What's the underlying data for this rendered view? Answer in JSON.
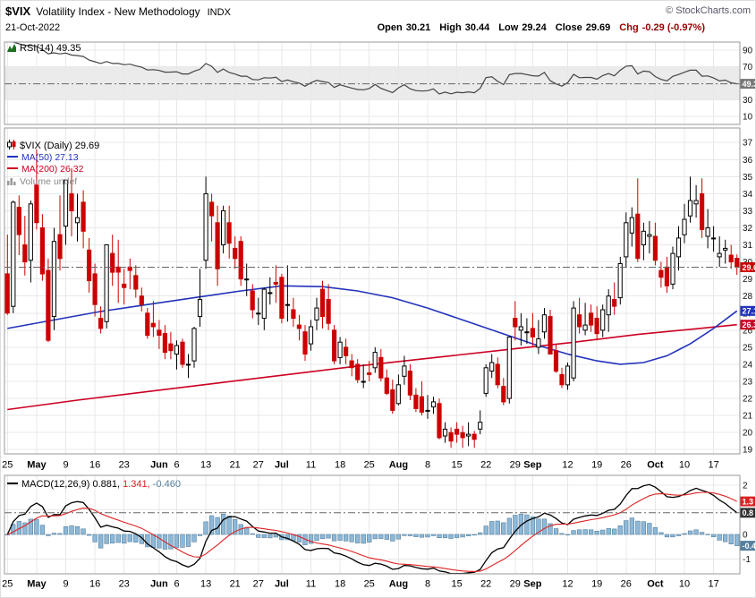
{
  "header": {
    "symbol": "$VIX",
    "name": "Volatility Index - New Methodology",
    "exchange": "INDX",
    "copyright": "© StockCharts.com",
    "date": "21-Oct-2022",
    "quote": {
      "open_l": "Open",
      "open": "30.21",
      "high_l": "High",
      "high": "30.44",
      "low_l": "Low",
      "low": "29.24",
      "close_l": "Close",
      "close": "29.69",
      "chg_l": "Chg",
      "chg": "-0.29 (-0.97%)"
    }
  },
  "legends": {
    "rsi": "RSI(14) 49.35",
    "price": "$VIX (Daily) 29.69",
    "ma50": "MA(50) 27.13",
    "ma200": "MA(200) 26.32",
    "volume": "Volume undef",
    "macd_label": "MACD(12,26,9) 0.881,",
    "macd_signal": "1.341,",
    "macd_hist": "-0.460"
  },
  "colors": {
    "candle_up": "#000000",
    "up_fill": "#ffffff",
    "candle_down": "#cc0000",
    "down_fill": "#cc0000",
    "ma50": "#2233bb",
    "ma200": "#cc0022",
    "grid": "#e8e8e8",
    "panel_border": "#999999",
    "rsi_line": "#444444",
    "rsi_band": "#ebebeb",
    "macd_line": "#000000",
    "signal_line": "#dd2222",
    "hist_fill": "#8db8d8",
    "hist_stroke": "#55809f",
    "badge_rsi": "#777777",
    "badge_macd": "#333333",
    "last_line": "#666666",
    "chg_text": "#990000",
    "copyright_text": "#555566",
    "volume_text": "#888888",
    "axis_text": "#111111"
  },
  "chart_data": {
    "type": "candlestick",
    "symbol": "$VIX",
    "timeframe": "Daily",
    "last_date": "21-Oct-2022",
    "x_ticks": [
      {
        "i": 0,
        "label": "25"
      },
      {
        "i": 5,
        "label": "May",
        "bold": true
      },
      {
        "i": 10,
        "label": "9"
      },
      {
        "i": 15,
        "label": "16"
      },
      {
        "i": 20,
        "label": "23"
      },
      {
        "i": 26,
        "label": "Jun",
        "bold": true
      },
      {
        "i": 29,
        "label": "6"
      },
      {
        "i": 34,
        "label": "13"
      },
      {
        "i": 39,
        "label": "21"
      },
      {
        "i": 43,
        "label": "27"
      },
      {
        "i": 47,
        "label": "Jul",
        "bold": true
      },
      {
        "i": 52,
        "label": "11"
      },
      {
        "i": 57,
        "label": "18"
      },
      {
        "i": 62,
        "label": "25"
      },
      {
        "i": 67,
        "label": "Aug",
        "bold": true
      },
      {
        "i": 72,
        "label": "8"
      },
      {
        "i": 77,
        "label": "15"
      },
      {
        "i": 82,
        "label": "22"
      },
      {
        "i": 87,
        "label": "29"
      },
      {
        "i": 90,
        "label": "Sep",
        "bold": true
      },
      {
        "i": 96,
        "label": "12"
      },
      {
        "i": 101,
        "label": "19"
      },
      {
        "i": 106,
        "label": "26"
      },
      {
        "i": 111,
        "label": "Oct",
        "bold": true
      },
      {
        "i": 116,
        "label": "10"
      },
      {
        "i": 121,
        "label": "17"
      }
    ],
    "price": {
      "ylim": [
        18.75,
        37.85
      ],
      "yticks": [
        37,
        36,
        35,
        34,
        33,
        32,
        31,
        30,
        29,
        28,
        27,
        26,
        25,
        24,
        23,
        22,
        21,
        20,
        19
      ],
      "last": 29.69,
      "ma50_last": 27.13,
      "ma200_last": 26.32,
      "candles": [
        [
          29.3,
          31.6,
          26.9,
          27.0
        ],
        [
          27.4,
          33.6,
          27.0,
          33.5
        ],
        [
          33.2,
          33.9,
          30.4,
          31.6
        ],
        [
          31.0,
          32.7,
          29.2,
          30.0
        ],
        [
          30.1,
          33.6,
          28.8,
          33.4
        ],
        [
          34.5,
          36.6,
          31.9,
          32.3
        ],
        [
          32.0,
          32.8,
          28.9,
          29.3
        ],
        [
          29.5,
          30.2,
          25.3,
          25.4
        ],
        [
          26.8,
          32.0,
          26.0,
          31.2
        ],
        [
          31.6,
          33.9,
          29.5,
          30.2
        ],
        [
          32.1,
          34.8,
          31.0,
          34.8
        ],
        [
          34.0,
          35.5,
          31.5,
          33.0
        ],
        [
          32.3,
          34.0,
          31.2,
          32.6
        ],
        [
          33.5,
          34.2,
          30.8,
          31.8
        ],
        [
          30.7,
          31.4,
          28.2,
          28.9
        ],
        [
          29.3,
          29.9,
          26.8,
          27.5
        ],
        [
          26.7,
          27.4,
          25.8,
          26.1
        ],
        [
          26.5,
          31.0,
          26.1,
          31.0
        ],
        [
          30.5,
          31.6,
          28.6,
          29.4
        ],
        [
          29.7,
          31.3,
          27.6,
          29.4
        ],
        [
          28.7,
          29.6,
          27.5,
          28.5
        ],
        [
          29.7,
          30.2,
          28.4,
          29.5
        ],
        [
          29.2,
          29.8,
          27.9,
          28.4
        ],
        [
          28.0,
          28.5,
          27.1,
          27.5
        ],
        [
          27.0,
          27.3,
          25.5,
          25.7
        ],
        [
          26.4,
          27.7,
          25.6,
          26.2
        ],
        [
          26.0,
          26.6,
          24.9,
          25.7
        ],
        [
          25.8,
          26.3,
          24.3,
          24.7
        ],
        [
          25.2,
          25.9,
          24.3,
          24.8
        ],
        [
          24.6,
          25.4,
          23.7,
          25.1
        ],
        [
          25.3,
          25.5,
          23.8,
          24.0
        ],
        [
          24.0,
          24.6,
          23.2,
          24.0
        ],
        [
          24.2,
          26.2,
          23.8,
          26.1
        ],
        [
          26.8,
          29.6,
          26.2,
          27.8
        ],
        [
          30.1,
          35.0,
          29.6,
          34.0
        ],
        [
          33.5,
          34.0,
          31.2,
          32.7
        ],
        [
          32.3,
          33.3,
          28.6,
          29.6
        ],
        [
          31.0,
          33.3,
          30.5,
          33.0
        ],
        [
          32.3,
          33.3,
          30.2,
          31.1
        ],
        [
          30.8,
          31.5,
          29.6,
          30.2
        ],
        [
          31.2,
          31.5,
          28.6,
          29.0
        ],
        [
          29.0,
          29.9,
          28.0,
          29.0
        ],
        [
          28.3,
          28.7,
          26.7,
          27.2
        ],
        [
          27.0,
          27.9,
          26.3,
          27.0
        ],
        [
          26.7,
          28.5,
          26.0,
          28.4
        ],
        [
          28.2,
          29.1,
          27.5,
          28.2
        ],
        [
          28.8,
          29.8,
          27.6,
          28.7
        ],
        [
          29.1,
          29.3,
          26.4,
          26.7
        ],
        [
          27.5,
          29.8,
          26.5,
          27.5
        ],
        [
          27.2,
          27.9,
          26.2,
          26.7
        ],
        [
          26.3,
          26.9,
          25.4,
          26.1
        ],
        [
          25.9,
          26.3,
          24.2,
          24.6
        ],
        [
          25.2,
          26.6,
          24.8,
          26.2
        ],
        [
          26.6,
          27.9,
          26.0,
          27.3
        ],
        [
          28.4,
          28.9,
          26.1,
          26.8
        ],
        [
          27.8,
          28.7,
          26.0,
          26.4
        ],
        [
          26.0,
          26.3,
          24.0,
          24.2
        ],
        [
          24.4,
          25.6,
          24.0,
          25.3
        ],
        [
          25.0,
          25.5,
          24.0,
          24.5
        ],
        [
          24.2,
          24.6,
          23.3,
          23.8
        ],
        [
          24.0,
          24.3,
          22.9,
          23.1
        ],
        [
          23.0,
          24.0,
          22.6,
          23.0
        ],
        [
          23.5,
          24.2,
          23.0,
          23.4
        ],
        [
          23.8,
          25.0,
          23.5,
          24.7
        ],
        [
          24.4,
          24.9,
          23.0,
          23.2
        ],
        [
          23.2,
          23.7,
          22.2,
          22.3
        ],
        [
          22.5,
          23.1,
          21.1,
          21.3
        ],
        [
          21.7,
          23.4,
          21.6,
          22.8
        ],
        [
          23.3,
          24.5,
          22.8,
          23.9
        ],
        [
          23.6,
          24.0,
          21.9,
          22.2
        ],
        [
          22.2,
          22.6,
          21.2,
          21.4
        ],
        [
          22.1,
          23.0,
          21.0,
          21.2
        ],
        [
          21.3,
          22.2,
          20.8,
          21.3
        ],
        [
          21.5,
          22.1,
          21.1,
          21.8
        ],
        [
          21.7,
          22.0,
          19.6,
          19.7
        ],
        [
          19.8,
          20.6,
          19.4,
          20.2
        ],
        [
          20.0,
          20.3,
          19.1,
          19.5
        ],
        [
          20.2,
          20.6,
          19.4,
          19.9
        ],
        [
          20.0,
          20.4,
          19.1,
          19.7
        ],
        [
          19.8,
          20.6,
          19.2,
          19.9
        ],
        [
          19.9,
          20.1,
          19.1,
          19.6
        ],
        [
          20.2,
          21.3,
          19.9,
          20.6
        ],
        [
          22.3,
          24.0,
          22.1,
          23.8
        ],
        [
          23.6,
          24.6,
          23.2,
          24.1
        ],
        [
          24.0,
          24.4,
          22.6,
          22.8
        ],
        [
          22.7,
          23.2,
          21.6,
          21.8
        ],
        [
          22.0,
          25.6,
          21.7,
          25.6
        ],
        [
          26.7,
          27.7,
          25.4,
          26.2
        ],
        [
          26.0,
          27.0,
          25.1,
          26.2
        ],
        [
          25.9,
          26.7,
          25.2,
          25.9
        ],
        [
          26.1,
          27.0,
          25.0,
          25.6
        ],
        [
          25.0,
          26.6,
          24.6,
          25.5
        ],
        [
          25.9,
          27.3,
          25.5,
          26.9
        ],
        [
          26.8,
          27.2,
          24.6,
          24.6
        ],
        [
          24.8,
          25.2,
          23.5,
          23.6
        ],
        [
          23.4,
          23.8,
          22.6,
          22.8
        ],
        [
          22.8,
          24.1,
          22.5,
          23.9
        ],
        [
          23.2,
          27.7,
          23.0,
          27.3
        ],
        [
          26.9,
          27.9,
          25.8,
          26.2
        ],
        [
          26.0,
          27.6,
          25.7,
          26.3
        ],
        [
          27.0,
          27.5,
          25.9,
          26.3
        ],
        [
          26.7,
          27.4,
          25.4,
          25.8
        ],
        [
          26.0,
          27.5,
          25.6,
          27.2
        ],
        [
          26.9,
          28.4,
          25.9,
          28.0
        ],
        [
          27.8,
          28.8,
          26.9,
          27.4
        ],
        [
          27.9,
          30.3,
          27.5,
          29.9
        ],
        [
          30.3,
          32.9,
          29.7,
          32.3
        ],
        [
          31.7,
          33.2,
          30.9,
          32.6
        ],
        [
          32.8,
          34.9,
          30.0,
          30.2
        ],
        [
          31.0,
          32.3,
          30.1,
          31.8
        ],
        [
          31.5,
          32.4,
          30.5,
          31.6
        ],
        [
          31.5,
          32.3,
          29.8,
          30.1
        ],
        [
          29.5,
          30.0,
          28.5,
          29.1
        ],
        [
          29.7,
          30.3,
          28.2,
          28.6
        ],
        [
          28.7,
          30.9,
          28.4,
          30.5
        ],
        [
          30.3,
          32.1,
          29.5,
          31.4
        ],
        [
          31.6,
          33.4,
          31.1,
          32.5
        ],
        [
          32.7,
          35.0,
          32.3,
          33.6
        ],
        [
          33.4,
          34.5,
          32.6,
          33.6
        ],
        [
          34.0,
          34.9,
          31.4,
          31.9
        ],
        [
          31.5,
          33.1,
          30.8,
          32.0
        ],
        [
          31.4,
          32.1,
          30.6,
          31.4
        ],
        [
          30.3,
          31.5,
          29.7,
          30.5
        ],
        [
          30.7,
          31.3,
          29.9,
          30.8
        ],
        [
          30.4,
          31.0,
          29.6,
          30.0
        ],
        [
          30.21,
          30.44,
          29.24,
          29.69
        ]
      ],
      "ma50": [
        [
          0,
          26.1
        ],
        [
          8,
          26.6
        ],
        [
          16,
          27.1
        ],
        [
          24,
          27.5
        ],
        [
          32,
          27.9
        ],
        [
          40,
          28.3
        ],
        [
          47,
          28.6
        ],
        [
          54,
          28.55
        ],
        [
          60,
          28.3
        ],
        [
          66,
          27.9
        ],
        [
          72,
          27.3
        ],
        [
          78,
          26.6
        ],
        [
          84,
          25.9
        ],
        [
          90,
          25.2
        ],
        [
          96,
          24.6
        ],
        [
          101,
          24.2
        ],
        [
          105,
          24.0
        ],
        [
          109,
          24.1
        ],
        [
          113,
          24.5
        ],
        [
          117,
          25.2
        ],
        [
          121,
          26.1
        ],
        [
          125,
          27.13
        ]
      ],
      "ma200": [
        [
          0,
          21.35
        ],
        [
          12,
          21.9
        ],
        [
          24,
          22.4
        ],
        [
          36,
          22.9
        ],
        [
          48,
          23.4
        ],
        [
          60,
          23.9
        ],
        [
          72,
          24.35
        ],
        [
          84,
          24.8
        ],
        [
          96,
          25.25
        ],
        [
          108,
          25.75
        ],
        [
          117,
          26.05
        ],
        [
          125,
          26.32
        ]
      ]
    },
    "rsi": {
      "period": 14,
      "last": 49.35,
      "ylim": [
        0,
        100
      ],
      "yticks": [
        90,
        70,
        30,
        10
      ],
      "band": [
        30,
        70
      ]
    },
    "macd": {
      "fast": 12,
      "slow": 26,
      "signal": 9,
      "last_macd": 0.881,
      "last_signal": 1.341,
      "last_hist": -0.46,
      "ylim": [
        -1.6,
        2.4
      ],
      "yticks": [
        2,
        0,
        -1
      ]
    }
  }
}
